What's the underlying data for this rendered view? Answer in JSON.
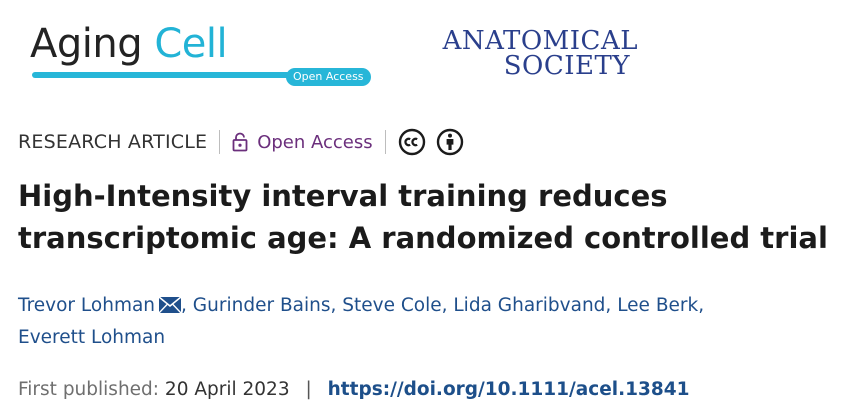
{
  "logos": {
    "journal_name_part1": "Aging",
    "journal_name_part2": "Cell",
    "journal_badge": "Open Access",
    "society_line1": "ANATOMICAL",
    "society_line2": "SOCIETY",
    "colors": {
      "cell_blue": "#22b3d6",
      "society_blue": "#2a3f8c"
    }
  },
  "meta": {
    "article_type": "RESEARCH ARTICLE",
    "access_label": "Open Access",
    "access_color": "#6b2f7c",
    "icons": [
      "lock-icon",
      "creative-commons-icon",
      "attribution-icon"
    ]
  },
  "article": {
    "title": "High-Intensity interval training reduces transcriptomic age: A randomized controlled trial"
  },
  "authors": {
    "names": [
      "Trevor Lohman",
      "Gurinder Bains",
      "Steve Cole",
      "Lida Gharibvand",
      "Lee Berk",
      "Everett Lohman"
    ],
    "separator": ", ",
    "corresponding_icon": "envelope-icon"
  },
  "publication": {
    "label": "First published:",
    "date": "20 April 2023",
    "separator": "|",
    "doi": "https://doi.org/10.1111/acel.13841"
  }
}
